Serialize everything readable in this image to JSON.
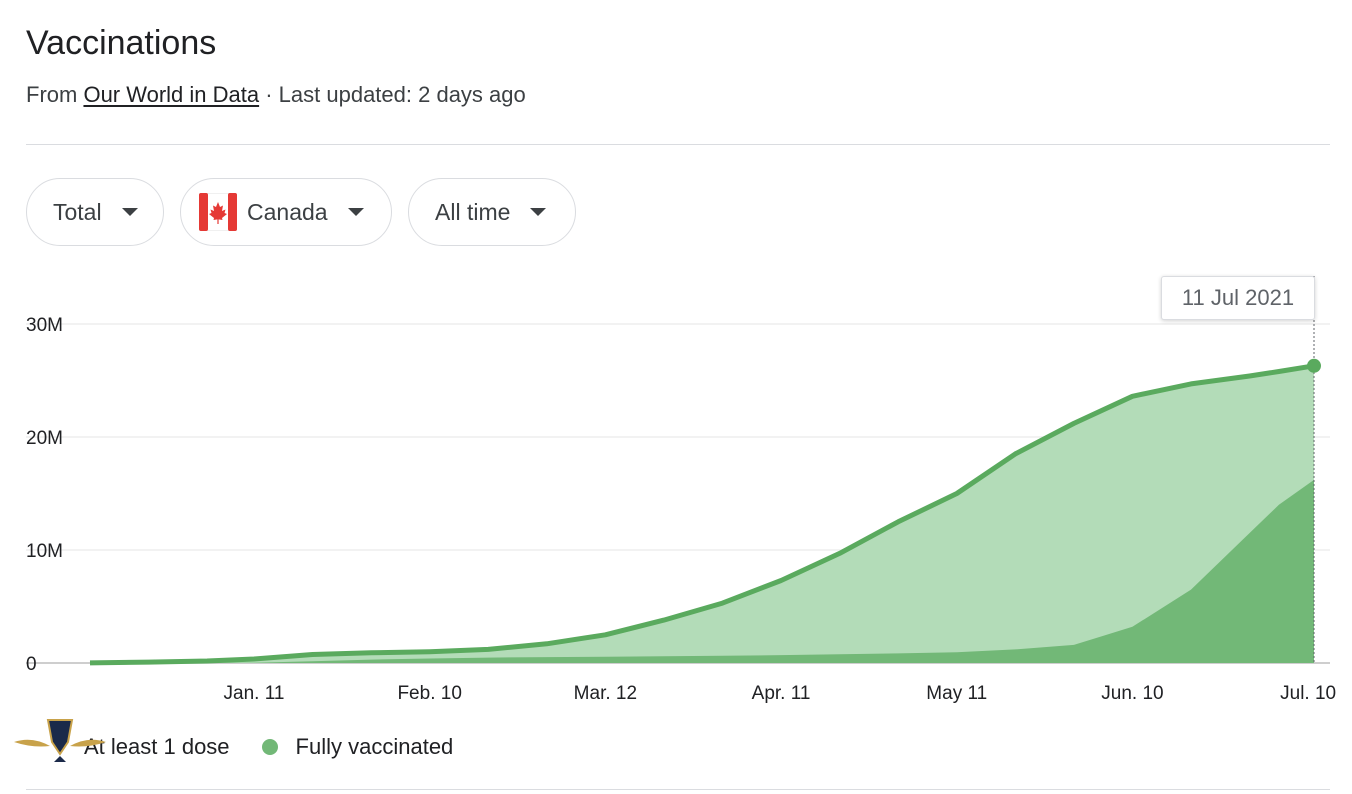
{
  "header": {
    "title": "Vaccinations",
    "from_prefix": "From",
    "source_name": "Our World in Data",
    "updated_text": "· Last updated: 2 days ago"
  },
  "filters": {
    "metric": "Total",
    "country": "Canada",
    "range": "All time"
  },
  "tooltip": {
    "date": "11 Jul 2021"
  },
  "colors": {
    "dose1_fill": "#b3dcb8",
    "dose1_line": "#5aaa5e",
    "full_fill": "#72b877",
    "grid": "#eeeeee",
    "flag_red": "#e53935"
  },
  "chart_data": {
    "type": "area",
    "title": "",
    "xlabel": "",
    "ylabel": "",
    "x_ticks": [
      "Jan. 11",
      "Feb. 10",
      "Mar. 12",
      "Apr. 11",
      "May 11",
      "Jun. 10",
      "Jul. 10"
    ],
    "y_ticks": [
      "0",
      "10M",
      "20M",
      "30M"
    ],
    "ylim": [
      0,
      30000000
    ],
    "grid": true,
    "legend_position": "bottom-left",
    "x": [
      "2020-12-14",
      "2020-12-24",
      "2021-01-03",
      "2021-01-11",
      "2021-01-21",
      "2021-01-31",
      "2021-02-10",
      "2021-02-20",
      "2021-03-02",
      "2021-03-12",
      "2021-03-22",
      "2021-04-01",
      "2021-04-11",
      "2021-04-21",
      "2021-05-01",
      "2021-05-11",
      "2021-05-21",
      "2021-05-31",
      "2021-06-10",
      "2021-06-20",
      "2021-06-30",
      "2021-07-05",
      "2021-07-11"
    ],
    "series": [
      {
        "name": "At least 1 dose",
        "values": [
          10000,
          80000,
          180000,
          350000,
          750000,
          900000,
          1000000,
          1200000,
          1700000,
          2500000,
          3800000,
          5300000,
          7300000,
          9700000,
          12500000,
          15000000,
          18500000,
          21200000,
          23600000,
          24700000,
          25400000,
          25800000,
          26300000
        ]
      },
      {
        "name": "Fully vaccinated",
        "values": [
          0,
          0,
          5000,
          20000,
          150000,
          300000,
          400000,
          480000,
          520000,
          560000,
          600000,
          640000,
          700000,
          780000,
          850000,
          950000,
          1200000,
          1600000,
          3200000,
          6500000,
          11500000,
          14000000,
          16200000
        ]
      }
    ]
  }
}
